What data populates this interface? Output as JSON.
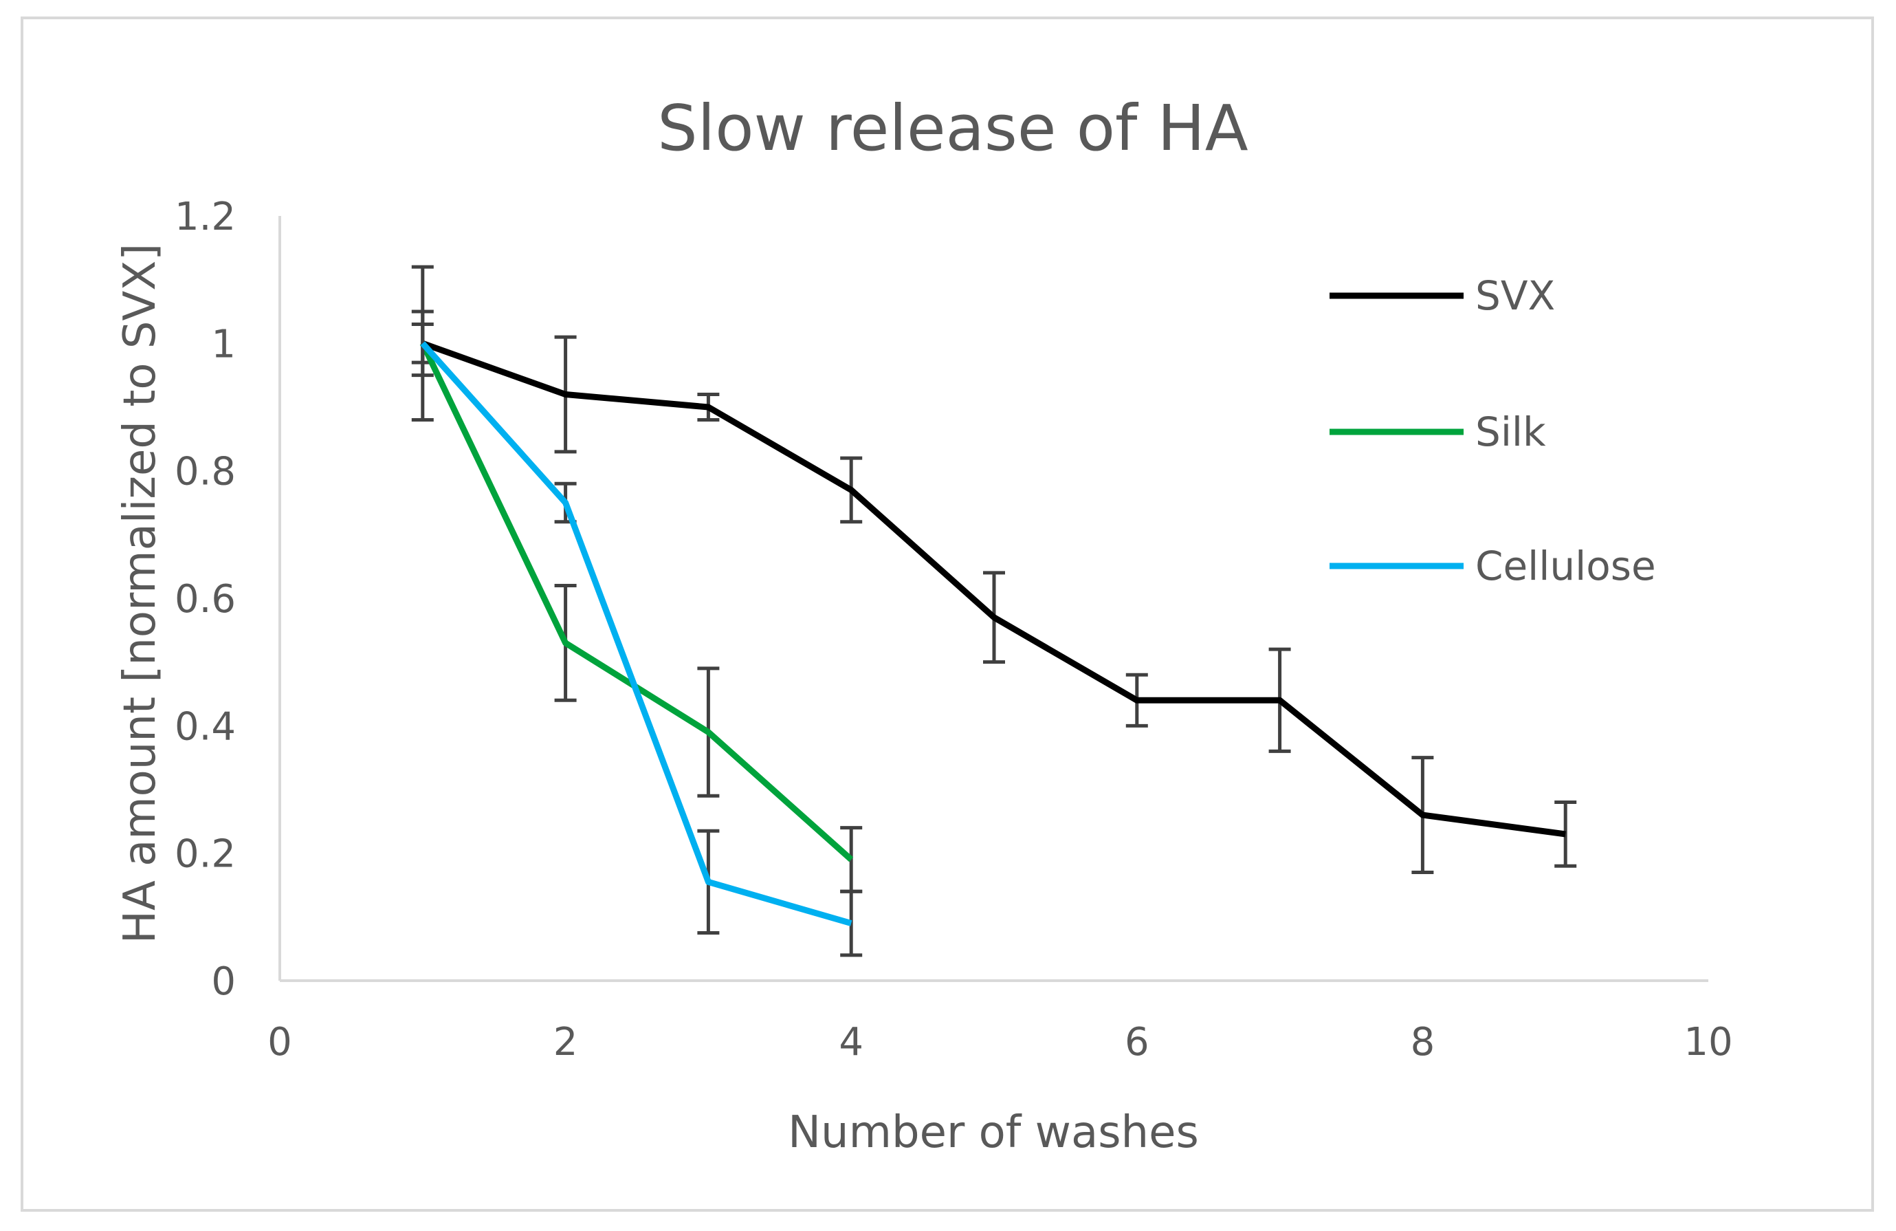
{
  "chart_data": {
    "type": "line",
    "title": "Slow release of HA",
    "xlabel": "Number of washes",
    "ylabel": "HA amount [normalized to SVX]",
    "xlim": [
      0,
      10
    ],
    "ylim": [
      0,
      1.2
    ],
    "xticks": [
      0,
      2,
      4,
      6,
      8,
      10
    ],
    "xtick_labels": [
      "0",
      "2",
      "4",
      "6",
      "8",
      "10"
    ],
    "yticks": [
      0,
      0.2,
      0.4,
      0.6,
      0.8,
      1.0,
      1.2
    ],
    "ytick_labels": [
      "0",
      "0.2",
      "0.4",
      "0.6",
      "0.8",
      "1",
      "1.2"
    ],
    "grid": false,
    "legend_position": "right",
    "series": [
      {
        "name": "SVX",
        "color": "#000000",
        "x": [
          1,
          2,
          3,
          4,
          5,
          6,
          7,
          8,
          9
        ],
        "y": [
          1.0,
          0.92,
          0.9,
          0.77,
          0.57,
          0.44,
          0.44,
          0.26,
          0.23
        ],
        "error": [
          0.12,
          0.09,
          0.02,
          0.05,
          0.07,
          0.04,
          0.08,
          0.09,
          0.05
        ]
      },
      {
        "name": "Silk",
        "color": "#00a33c",
        "x": [
          1,
          2,
          3,
          4
        ],
        "y": [
          1.0,
          0.53,
          0.39,
          0.19
        ],
        "error": [
          0.03,
          0.09,
          0.1,
          0.05
        ]
      },
      {
        "name": "Cellulose",
        "color": "#00b0f0",
        "x": [
          1,
          2,
          3,
          4
        ],
        "y": [
          1.0,
          0.75,
          0.155,
          0.09
        ],
        "error": [
          0.05,
          0.03,
          0.08,
          0.05
        ]
      }
    ]
  }
}
